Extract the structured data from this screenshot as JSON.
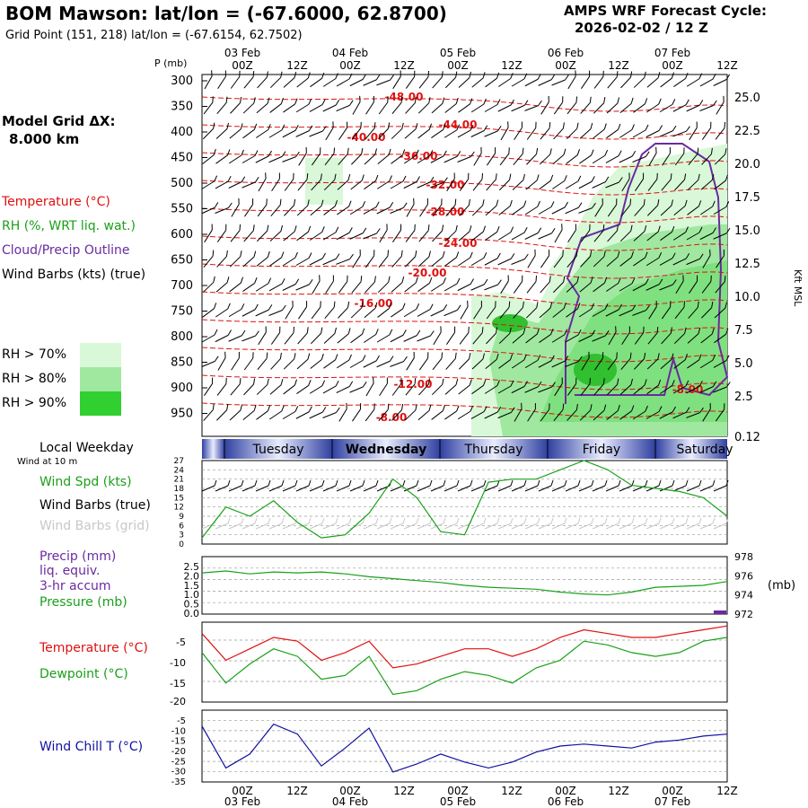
{
  "header": {
    "title": "BOM Mawson:  lat/lon = (-67.6000, 62.8700)",
    "gridpoint": "Grid Point (151, 218) lat/lon = (-67.6154, 62.7502)",
    "cycle_label": "AMPS WRF Forecast Cycle:",
    "cycle_value": "2026-02-02 / 12  Z"
  },
  "model_grid": {
    "label": "Model Grid ΔX:",
    "value": "8.000 km"
  },
  "legend_top": {
    "temperature": "Temperature (°C)",
    "rh": "RH (%, WRT liq. wat.)",
    "cloud": "Cloud/Precip Outline",
    "wind": "Wind Barbs (kts) (true)",
    "rh70": "RH > 70%",
    "rh80": "RH > 80%",
    "rh90": "RH > 90%"
  },
  "time_axis": {
    "days_top": [
      "03 Feb",
      "04 Feb",
      "05 Feb",
      "06 Feb",
      "07 Feb"
    ],
    "hours": [
      "00Z",
      "12Z",
      "00Z",
      "12Z",
      "00Z",
      "12Z",
      "00Z",
      "12Z",
      "00Z",
      "12Z"
    ],
    "days_bottom": [
      "03 Feb",
      "04 Feb",
      "05 Feb",
      "06 Feb",
      "07 Feb"
    ]
  },
  "weekday_bar": {
    "label": "Local Weekday",
    "sub": "Wind at 10 m",
    "days": [
      "Tuesday",
      "Wednesday",
      "Thursday",
      "Friday",
      "Saturday"
    ]
  },
  "chart_data": [
    {
      "type": "line",
      "panel": "cross-section",
      "ylabel": "P (mb)",
      "pressure_ticks": [
        "300",
        "350",
        "400",
        "450",
        "500",
        "550",
        "600",
        "650",
        "700",
        "750",
        "800",
        "850",
        "900",
        "950"
      ],
      "right_axis_label": "Kft MSL",
      "right_ticks": [
        "25.0",
        "22.5",
        "20.0",
        "17.5",
        "15.0",
        "12.5",
        "10.0",
        "7.5",
        "5.0",
        "2.5",
        "0.12"
      ],
      "temperature_contour_labels": [
        "-48.00",
        "-44.00",
        "-40.00",
        "-36.00",
        "-32.00",
        "-28.00",
        "-24.00",
        "-20.00",
        "-16.00",
        "-12.00",
        "-8.00",
        "-8.00"
      ]
    },
    {
      "type": "line",
      "panel": "wind",
      "labels": {
        "spd": "Wind Spd (kts)",
        "barbs_true": "Wind Barbs (true)",
        "barbs_grid": "Wind Barbs (grid)"
      },
      "yticks": [
        "27",
        "24",
        "21",
        "18",
        "15",
        "12",
        "9",
        "6",
        "3",
        "0"
      ],
      "ylim": [
        0,
        27
      ],
      "x_hours": [
        0,
        6,
        12,
        18,
        24,
        30,
        36,
        42,
        48,
        54,
        60,
        66,
        72,
        78,
        84,
        90,
        96,
        102,
        108,
        114,
        120,
        126,
        132
      ],
      "series": [
        {
          "name": "Wind Spd (kts)",
          "values": [
            2,
            12,
            9,
            14,
            7,
            2,
            3,
            10,
            21,
            15,
            4,
            3,
            20,
            21,
            21,
            24,
            27,
            24,
            19,
            18,
            17,
            15,
            9
          ]
        }
      ]
    },
    {
      "type": "line",
      "panel": "precip",
      "labels": {
        "precip": "Precip (mm)",
        "liq": "liq. equiv.",
        "accum": "3-hr accum",
        "pressure": "Pressure (mb)"
      },
      "yticks_left": [
        "2.5",
        "2.0",
        "1.5",
        "1.0",
        "0.5",
        "0.0"
      ],
      "yticks_right": [
        "978",
        "976",
        "974",
        "972"
      ],
      "right_unit": "(mb)",
      "ylim_right": [
        972,
        978
      ],
      "x_hours": [
        0,
        6,
        12,
        18,
        24,
        30,
        36,
        42,
        48,
        54,
        60,
        66,
        72,
        78,
        84,
        90,
        96,
        102,
        108,
        114,
        120,
        126,
        132
      ],
      "series": [
        {
          "name": "Pressure (mb)",
          "values": [
            976.3,
            976.5,
            976.2,
            976.4,
            976.3,
            976.4,
            976.2,
            975.9,
            975.7,
            975.5,
            975.3,
            975.0,
            974.8,
            974.7,
            974.6,
            974.3,
            974.1,
            974.0,
            974.3,
            974.8,
            974.9,
            975.0,
            975.4
          ]
        }
      ]
    },
    {
      "type": "line",
      "panel": "temperature",
      "labels": {
        "temp": "Temperature (°C)",
        "dew": "Dewpoint (°C)"
      },
      "yticks": [
        "-5",
        "-10",
        "-15",
        "-20"
      ],
      "ylim": [
        -20,
        0
      ],
      "x_hours": [
        0,
        6,
        12,
        18,
        24,
        30,
        36,
        42,
        48,
        54,
        60,
        66,
        72,
        78,
        84,
        90,
        96,
        102,
        108,
        114,
        120,
        126,
        132
      ],
      "series": [
        {
          "name": "Temperature (°C)",
          "values": [
            -3,
            -10,
            -7,
            -4,
            -5,
            -10,
            -8,
            -5,
            -12,
            -11,
            -9,
            -7,
            -7,
            -9,
            -7,
            -4,
            -2,
            -3,
            -4,
            -4,
            -3,
            -2,
            -1
          ]
        },
        {
          "name": "Dewpoint (°C)",
          "values": [
            -8,
            -16,
            -11,
            -7,
            -9,
            -15,
            -14,
            -9,
            -19,
            -18,
            -15,
            -13,
            -14,
            -16,
            -12,
            -10,
            -5,
            -6,
            -8,
            -9,
            -8,
            -5,
            -4
          ]
        }
      ]
    },
    {
      "type": "line",
      "panel": "windchill",
      "labels": {
        "wc": "Wind Chill T (°C)"
      },
      "yticks": [
        "-5",
        "-10",
        "-15",
        "-20",
        "-25",
        "-30",
        "-35"
      ],
      "ylim": [
        -35,
        0
      ],
      "x_hours": [
        0,
        6,
        12,
        18,
        24,
        30,
        36,
        42,
        48,
        54,
        60,
        66,
        72,
        78,
        84,
        90,
        96,
        102,
        108,
        114,
        120,
        126,
        132
      ],
      "series": [
        {
          "name": "Wind Chill T (°C)",
          "values": [
            -8,
            -29,
            -22,
            -7,
            -12,
            -28,
            -19,
            -9,
            -31,
            -27,
            -22,
            -26,
            -29,
            -26,
            -21,
            -18,
            -17,
            -18,
            -19,
            -16,
            -15,
            -13,
            -12
          ]
        }
      ]
    }
  ],
  "colors": {
    "temp": "#e01010",
    "rh": "#1aa01a",
    "cloud": "#6a2aa0",
    "wind": "#000000",
    "grid_barb": "#c8c8c8",
    "windchill": "#1010a0"
  }
}
